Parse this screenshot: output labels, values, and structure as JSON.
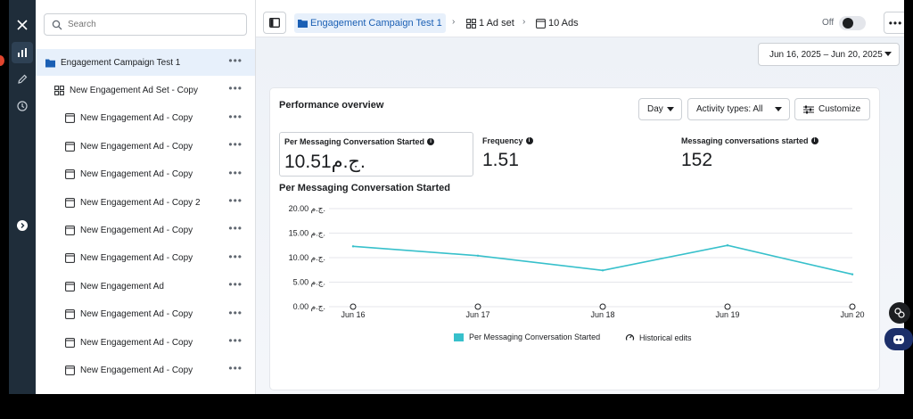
{
  "sidebar": {
    "search_placeholder": "Search",
    "items": [
      {
        "label": "Engagement Campaign Test 1",
        "icon": "folder-icon",
        "level": 0,
        "selected": true
      },
      {
        "label": "New Engagement Ad Set - Copy",
        "icon": "adset-grid-icon",
        "level": 1
      },
      {
        "label": "New Engagement Ad - Copy",
        "icon": "ad-icon",
        "level": 2
      },
      {
        "label": "New Engagement Ad - Copy",
        "icon": "ad-icon",
        "level": 2
      },
      {
        "label": "New Engagement Ad - Copy",
        "icon": "ad-icon",
        "level": 2
      },
      {
        "label": "New Engagement Ad - Copy 2",
        "icon": "ad-icon",
        "level": 2
      },
      {
        "label": "New Engagement Ad - Copy",
        "icon": "ad-icon",
        "level": 2
      },
      {
        "label": "New Engagement Ad - Copy",
        "icon": "ad-icon",
        "level": 2
      },
      {
        "label": "New Engagement Ad",
        "icon": "ad-icon",
        "level": 2
      },
      {
        "label": "New Engagement Ad - Copy",
        "icon": "ad-icon",
        "level": 2
      },
      {
        "label": "New Engagement Ad - Copy",
        "icon": "ad-icon",
        "level": 2
      },
      {
        "label": "New Engagement Ad - Copy",
        "icon": "ad-icon",
        "level": 2
      }
    ]
  },
  "breadcrumb": {
    "campaign": "Engagement Campaign Test 1",
    "adset": "1 Ad set",
    "ads": "10 Ads"
  },
  "toggle": {
    "label": "Off",
    "state": "off"
  },
  "date_range": "Jun 16, 2025 – Jun 20, 2025",
  "performance": {
    "title": "Performance overview",
    "granularity": "Day",
    "activity_types": "Activity types: All",
    "customize": "Customize",
    "metrics": [
      {
        "label": "Per Messaging Conversation Started",
        "value": "10.51ج.م."
      },
      {
        "label": "Frequency",
        "value": "1.51"
      },
      {
        "label": "Messaging conversations started",
        "value": "152"
      }
    ],
    "chart_title": "Per Messaging Conversation Started",
    "legend_series": "Per Messaging Conversation Started",
    "legend_edits": "Historical edits"
  },
  "chart_data": {
    "type": "line",
    "title": "Per Messaging Conversation Started",
    "x": [
      "Jun 16",
      "Jun 17",
      "Jun 18",
      "Jun 19",
      "Jun 20"
    ],
    "series": [
      {
        "name": "Per Messaging Conversation Started",
        "values": [
          12.3,
          10.4,
          7.4,
          12.5,
          6.6
        ],
        "color": "#37c0cb"
      }
    ],
    "y_ticks": [
      "0.00 ج.م.",
      "5.00 ج.م.",
      "10.00 ج.م.",
      "15.00 ج.م.",
      "20.00 ج.م."
    ],
    "ylim": [
      0,
      20
    ],
    "grid": true,
    "legend": "bottom-center"
  },
  "colors": {
    "accent": "#1a5fb4",
    "rail": "#1f2d3a",
    "series": "#37c0cb"
  }
}
